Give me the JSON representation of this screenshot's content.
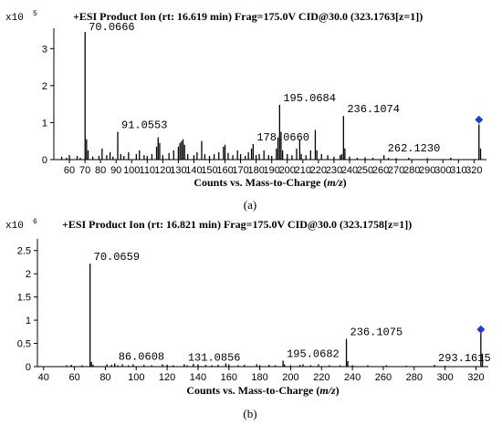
{
  "chart_data": [
    {
      "type": "bar",
      "title": "+ESI Product Ion (rt: 16.619 min) Frag=175.0V CID@30.0 (323.1763[z=1])",
      "scale_label": "x10",
      "scale_exponent": "5",
      "xlabel_prefix": "Counts vs. Mass-to-Charge (",
      "xlabel_italic": "m/z",
      "xlabel_suffix": ")",
      "caption": "(a)",
      "xlim": [
        50,
        328
      ],
      "ylim": [
        0,
        3.55
      ],
      "xticks": [
        60,
        70,
        80,
        90,
        100,
        110,
        120,
        130,
        140,
        150,
        160,
        170,
        180,
        190,
        200,
        210,
        220,
        230,
        240,
        250,
        260,
        270,
        280,
        290,
        300,
        310,
        320
      ],
      "yticks": [
        0,
        1,
        2,
        3
      ],
      "precursor_marker": {
        "x": 323.18,
        "y": 1.08,
        "color": "#1f3fcc"
      },
      "peaks": [
        {
          "x": 55.0,
          "y": 0.08
        },
        {
          "x": 58.1,
          "y": 0.05
        },
        {
          "x": 60.0,
          "y": 0.12
        },
        {
          "x": 65.0,
          "y": 0.1
        },
        {
          "x": 67.0,
          "y": 0.05
        },
        {
          "x": 70.07,
          "y": 3.45
        },
        {
          "x": 71.0,
          "y": 0.55
        },
        {
          "x": 72.0,
          "y": 0.25
        },
        {
          "x": 75.0,
          "y": 0.08
        },
        {
          "x": 79.0,
          "y": 0.1
        },
        {
          "x": 81.0,
          "y": 0.3
        },
        {
          "x": 84.0,
          "y": 0.12
        },
        {
          "x": 86.1,
          "y": 0.2
        },
        {
          "x": 88.0,
          "y": 0.08
        },
        {
          "x": 91.06,
          "y": 0.75
        },
        {
          "x": 93.0,
          "y": 0.15
        },
        {
          "x": 95.0,
          "y": 0.1
        },
        {
          "x": 98.0,
          "y": 0.2
        },
        {
          "x": 103.0,
          "y": 0.15
        },
        {
          "x": 105.0,
          "y": 0.25
        },
        {
          "x": 108.0,
          "y": 0.12
        },
        {
          "x": 110.0,
          "y": 0.1
        },
        {
          "x": 113.0,
          "y": 0.15
        },
        {
          "x": 116.0,
          "y": 0.35
        },
        {
          "x": 117.0,
          "y": 0.6
        },
        {
          "x": 118.0,
          "y": 0.45
        },
        {
          "x": 120.0,
          "y": 0.12
        },
        {
          "x": 124.0,
          "y": 0.18
        },
        {
          "x": 127.0,
          "y": 0.25
        },
        {
          "x": 130.0,
          "y": 0.35
        },
        {
          "x": 131.0,
          "y": 0.45
        },
        {
          "x": 132.0,
          "y": 0.5
        },
        {
          "x": 133.0,
          "y": 0.55
        },
        {
          "x": 134.0,
          "y": 0.4
        },
        {
          "x": 136.0,
          "y": 0.15
        },
        {
          "x": 140.0,
          "y": 0.12
        },
        {
          "x": 142.0,
          "y": 0.2
        },
        {
          "x": 145.0,
          "y": 0.5
        },
        {
          "x": 147.0,
          "y": 0.15
        },
        {
          "x": 150.0,
          "y": 0.1
        },
        {
          "x": 153.0,
          "y": 0.15
        },
        {
          "x": 156.0,
          "y": 0.2
        },
        {
          "x": 159.0,
          "y": 0.35
        },
        {
          "x": 160.0,
          "y": 0.4
        },
        {
          "x": 162.0,
          "y": 0.18
        },
        {
          "x": 165.0,
          "y": 0.12
        },
        {
          "x": 168.0,
          "y": 0.25
        },
        {
          "x": 170.0,
          "y": 0.15
        },
        {
          "x": 173.0,
          "y": 0.1
        },
        {
          "x": 175.0,
          "y": 0.2
        },
        {
          "x": 177.0,
          "y": 0.3
        },
        {
          "x": 178.07,
          "y": 0.42
        },
        {
          "x": 180.0,
          "y": 0.12
        },
        {
          "x": 182.0,
          "y": 0.15
        },
        {
          "x": 185.0,
          "y": 0.25
        },
        {
          "x": 188.0,
          "y": 0.12
        },
        {
          "x": 190.0,
          "y": 0.1
        },
        {
          "x": 193.0,
          "y": 0.3
        },
        {
          "x": 194.0,
          "y": 0.6
        },
        {
          "x": 195.07,
          "y": 1.48
        },
        {
          "x": 196.0,
          "y": 0.75
        },
        {
          "x": 197.0,
          "y": 0.25
        },
        {
          "x": 200.0,
          "y": 0.15
        },
        {
          "x": 203.0,
          "y": 0.12
        },
        {
          "x": 206.0,
          "y": 0.3
        },
        {
          "x": 208.0,
          "y": 0.55
        },
        {
          "x": 209.0,
          "y": 0.15
        },
        {
          "x": 212.0,
          "y": 0.12
        },
        {
          "x": 215.0,
          "y": 0.25
        },
        {
          "x": 218.0,
          "y": 0.8
        },
        {
          "x": 219.0,
          "y": 0.25
        },
        {
          "x": 222.0,
          "y": 0.15
        },
        {
          "x": 226.0,
          "y": 0.12
        },
        {
          "x": 230.0,
          "y": 0.08
        },
        {
          "x": 234.0,
          "y": 0.12
        },
        {
          "x": 235.0,
          "y": 0.15
        },
        {
          "x": 236.11,
          "y": 1.18
        },
        {
          "x": 237.0,
          "y": 0.3
        },
        {
          "x": 240.0,
          "y": 0.08
        },
        {
          "x": 245.0,
          "y": 0.05
        },
        {
          "x": 250.0,
          "y": 0.06
        },
        {
          "x": 255.0,
          "y": 0.05
        },
        {
          "x": 262.12,
          "y": 0.12
        },
        {
          "x": 265.0,
          "y": 0.05
        },
        {
          "x": 270.0,
          "y": 0.04
        },
        {
          "x": 278.0,
          "y": 0.05
        },
        {
          "x": 290.0,
          "y": 0.04
        },
        {
          "x": 305.0,
          "y": 0.05
        },
        {
          "x": 323.18,
          "y": 0.95
        },
        {
          "x": 324.2,
          "y": 0.3
        }
      ],
      "annotations": [
        {
          "text": "70.0666",
          "x": 70.07,
          "y": 3.45
        },
        {
          "text": "91.0553",
          "x": 91.06,
          "y": 0.75
        },
        {
          "text": "178.0660",
          "x": 178.07,
          "y": 0.42
        },
        {
          "text": "195.0684",
          "x": 195.07,
          "y": 1.48
        },
        {
          "text": "236.1074",
          "x": 236.11,
          "y": 1.18
        },
        {
          "text": "262.1230",
          "x": 262.12,
          "y": 0.12
        }
      ]
    },
    {
      "type": "bar",
      "title": "+ESI Product Ion (rt: 16.821 min) Frag=175.0V CID@30.0 (323.1758[z=1])",
      "scale_label": "x10",
      "scale_exponent": "6",
      "xlabel_prefix": "Counts vs. Mass-to-Charge (",
      "xlabel_italic": "m/z",
      "xlabel_suffix": ")",
      "caption": "(b)",
      "xlim": [
        36,
        328
      ],
      "ylim": [
        0,
        2.75
      ],
      "xticks": [
        40,
        60,
        80,
        100,
        120,
        140,
        160,
        180,
        200,
        220,
        240,
        260,
        280,
        300,
        320
      ],
      "yticks": [
        0,
        0.5,
        1,
        1.5,
        2,
        2.5
      ],
      "ytick_labels": [
        "0",
        "0.5",
        "1",
        "1.5",
        "2",
        "2.5"
      ],
      "precursor_marker": {
        "x": 323.18,
        "y": 0.8,
        "color": "#1f3fcc"
      },
      "peaks": [
        {
          "x": 55.0,
          "y": 0.03
        },
        {
          "x": 58.0,
          "y": 0.04
        },
        {
          "x": 65.0,
          "y": 0.03
        },
        {
          "x": 70.07,
          "y": 2.22
        },
        {
          "x": 71.0,
          "y": 0.1
        },
        {
          "x": 72.0,
          "y": 0.04
        },
        {
          "x": 81.0,
          "y": 0.05
        },
        {
          "x": 84.0,
          "y": 0.04
        },
        {
          "x": 86.06,
          "y": 0.07
        },
        {
          "x": 88.0,
          "y": 0.03
        },
        {
          "x": 91.0,
          "y": 0.05
        },
        {
          "x": 95.0,
          "y": 0.03
        },
        {
          "x": 98.0,
          "y": 0.05
        },
        {
          "x": 105.0,
          "y": 0.04
        },
        {
          "x": 110.0,
          "y": 0.03
        },
        {
          "x": 117.0,
          "y": 0.05
        },
        {
          "x": 120.0,
          "y": 0.04
        },
        {
          "x": 124.0,
          "y": 0.03
        },
        {
          "x": 131.09,
          "y": 0.05
        },
        {
          "x": 133.0,
          "y": 0.03
        },
        {
          "x": 137.0,
          "y": 0.06
        },
        {
          "x": 140.0,
          "y": 0.05
        },
        {
          "x": 145.0,
          "y": 0.04
        },
        {
          "x": 149.0,
          "y": 0.03
        },
        {
          "x": 153.0,
          "y": 0.04
        },
        {
          "x": 158.0,
          "y": 0.07
        },
        {
          "x": 160.0,
          "y": 0.05
        },
        {
          "x": 166.0,
          "y": 0.03
        },
        {
          "x": 170.0,
          "y": 0.04
        },
        {
          "x": 178.0,
          "y": 0.05
        },
        {
          "x": 180.0,
          "y": 0.03
        },
        {
          "x": 186.0,
          "y": 0.04
        },
        {
          "x": 190.0,
          "y": 0.03
        },
        {
          "x": 195.07,
          "y": 0.13
        },
        {
          "x": 196.0,
          "y": 0.05
        },
        {
          "x": 200.0,
          "y": 0.03
        },
        {
          "x": 206.0,
          "y": 0.04
        },
        {
          "x": 208.0,
          "y": 0.05
        },
        {
          "x": 213.0,
          "y": 0.03
        },
        {
          "x": 218.0,
          "y": 0.05
        },
        {
          "x": 225.0,
          "y": 0.03
        },
        {
          "x": 232.0,
          "y": 0.03
        },
        {
          "x": 236.11,
          "y": 0.6
        },
        {
          "x": 237.0,
          "y": 0.12
        },
        {
          "x": 240.0,
          "y": 0.03
        },
        {
          "x": 250.0,
          "y": 0.03
        },
        {
          "x": 262.0,
          "y": 0.03
        },
        {
          "x": 275.0,
          "y": 0.02
        },
        {
          "x": 293.16,
          "y": 0.04
        },
        {
          "x": 300.0,
          "y": 0.02
        },
        {
          "x": 323.18,
          "y": 0.72
        },
        {
          "x": 324.2,
          "y": 0.28
        }
      ],
      "annotations": [
        {
          "text": "70.0659",
          "x": 70.07,
          "y": 2.22
        },
        {
          "text": "86.0608",
          "x": 86.06,
          "y": 0.07
        },
        {
          "text": "131.0856",
          "x": 131.09,
          "y": 0.05
        },
        {
          "text": "195.0682",
          "x": 195.07,
          "y": 0.13
        },
        {
          "text": "236.1075",
          "x": 236.11,
          "y": 0.6
        },
        {
          "text": "293.1615",
          "x": 293.16,
          "y": 0.04
        }
      ]
    }
  ]
}
